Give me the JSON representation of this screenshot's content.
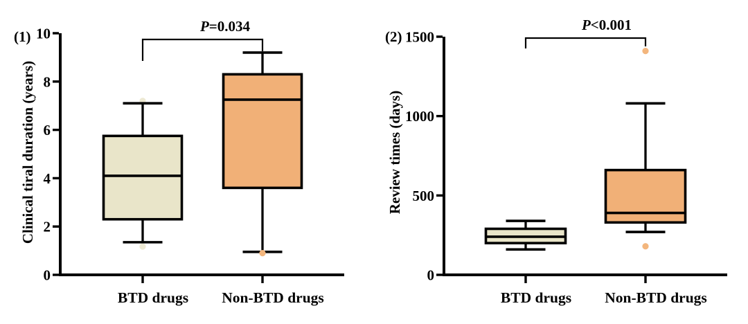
{
  "figure": {
    "background": "#FFFFFF",
    "ink_color": "#000000"
  },
  "chart_data": [
    {
      "type": "box",
      "panel_label": "(1)",
      "ylabel": "Clinical tiral duration (years)",
      "ylim": [
        0,
        10
      ],
      "yticks": [
        0,
        2,
        4,
        6,
        8,
        10
      ],
      "categories": [
        "BTD drugs",
        "Non-BTD drugs"
      ],
      "significance_label": "P=0.034",
      "grid": false,
      "legend": "none",
      "series": [
        {
          "name": "BTD drugs",
          "min": 1.35,
          "q1": 2.3,
          "median": 4.1,
          "q3": 5.75,
          "max": 7.1,
          "outliers": [
            7.2,
            1.17
          ],
          "fill": "#E9E5C9",
          "outlier_color": "#EDE9D3"
        },
        {
          "name": "Non-BTD drugs",
          "min": 0.95,
          "q1": 3.6,
          "median": 7.25,
          "q3": 8.3,
          "max": 9.2,
          "outliers": [
            0.9
          ],
          "fill": "#F1B077",
          "outlier_color": "#F3B67D"
        }
      ]
    },
    {
      "type": "box",
      "panel_label": "(2)",
      "ylabel": "Review times (days)",
      "ylim": [
        0,
        1500
      ],
      "yticks": [
        0,
        500,
        1000,
        1500
      ],
      "categories": [
        "BTD drugs",
        "Non-BTD drugs"
      ],
      "significance_label": "P<0.001",
      "grid": false,
      "legend": "none",
      "series": [
        {
          "name": "BTD drugs",
          "min": 160,
          "q1": 200,
          "median": 240,
          "q3": 290,
          "max": 340,
          "outliers": [],
          "fill": "#E9E5C9",
          "outlier_color": "#EDE9D3"
        },
        {
          "name": "Non-BTD drugs",
          "min": 270,
          "q1": 330,
          "median": 390,
          "q3": 660,
          "max": 1080,
          "outliers": [
            1410,
            180
          ],
          "fill": "#F1B077",
          "outlier_color": "#F3B67D"
        }
      ]
    }
  ]
}
